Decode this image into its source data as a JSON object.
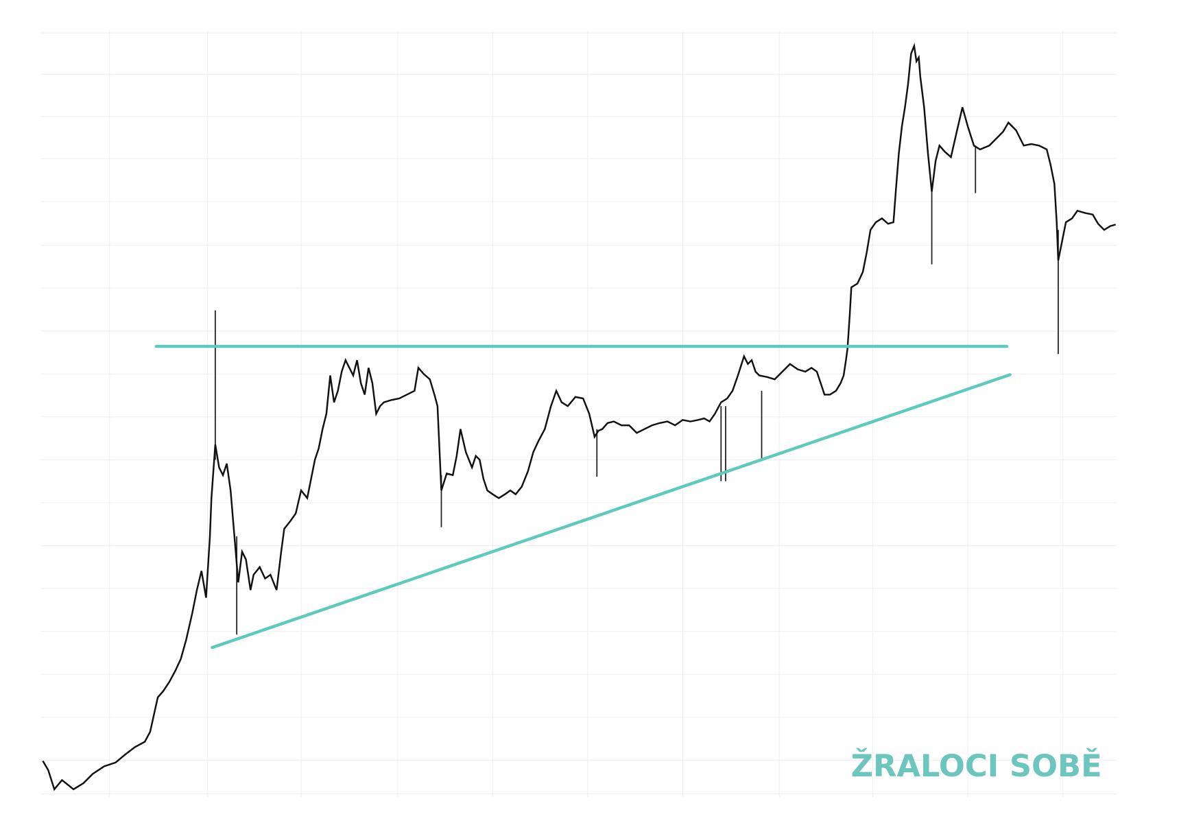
{
  "watermark": "ŽRALOCI SOBĚ"
}
